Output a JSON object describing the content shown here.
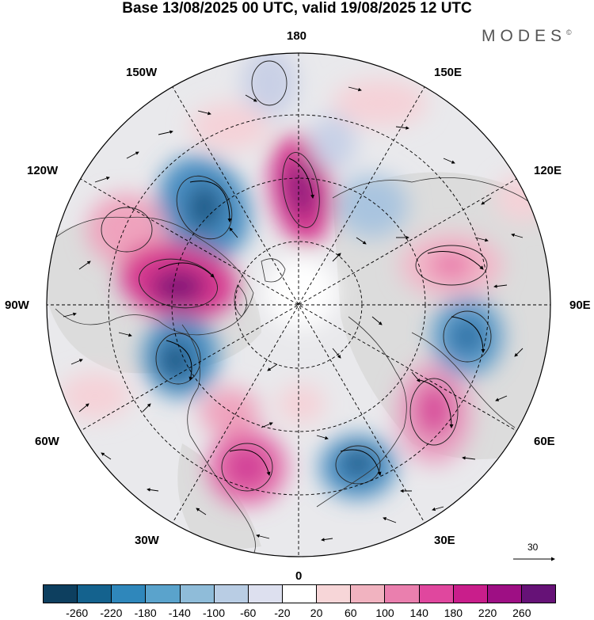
{
  "header": {
    "title": "Base 13/08/2025 00 UTC, valid 19/08/2025 12 UTC",
    "brand": "MODES",
    "brand_mark": "©"
  },
  "map": {
    "projection": "north polar stereographic",
    "longitude_labels": {
      "top": "180",
      "bottom": "0",
      "left": "90W",
      "right": "90E",
      "upper_left_a": "150W",
      "upper_left_b": "120W",
      "lower_left_a": "60W",
      "lower_left_b": "30W",
      "upper_right_a": "150E",
      "upper_right_b": "120E",
      "lower_right_a": "60E",
      "lower_right_b": "30E"
    },
    "reference_vector": "30"
  },
  "colorbar": {
    "colors": [
      "#0d3f5f",
      "#14628e",
      "#2f87bb",
      "#5aa3cc",
      "#8fbcd9",
      "#b9cde4",
      "#dde0ef",
      "#ffffff",
      "#f7d6d8",
      "#f1b3c0",
      "#ea7fae",
      "#e0479e",
      "#c91e8b",
      "#9e0f84",
      "#661277"
    ],
    "ticks": [
      "-260",
      "-220",
      "-180",
      "-140",
      "-100",
      "-60",
      "-20",
      "20",
      "60",
      "100",
      "140",
      "180",
      "220",
      "260"
    ]
  }
}
